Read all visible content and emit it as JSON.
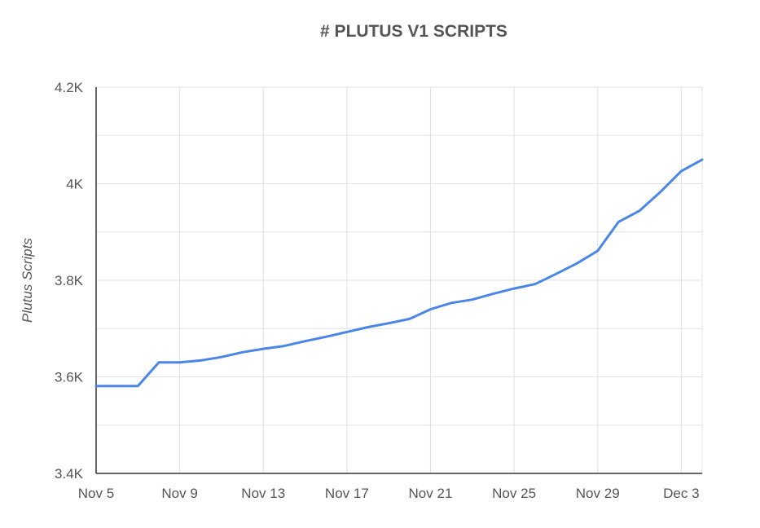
{
  "chart_data": {
    "type": "line",
    "title": "# PLUTUS V1 SCRIPTS",
    "xlabel": "",
    "ylabel": "Plutus Scripts",
    "xlim": [
      "2021-11-05",
      "2021-12-04"
    ],
    "ylim": [
      3400,
      4200
    ],
    "x_tick_labels": [
      "Nov 5",
      "Nov 9",
      "Nov 13",
      "Nov 17",
      "Nov 21",
      "Nov 25",
      "Nov 29",
      "Dec 3"
    ],
    "x_ticks": [
      "2021-11-05",
      "2021-11-09",
      "2021-11-13",
      "2021-11-17",
      "2021-11-21",
      "2021-11-25",
      "2021-11-29",
      "2021-12-03"
    ],
    "y_tick_labels": [
      "3.4K",
      "3.6K",
      "3.8K",
      "4K",
      "4.2K"
    ],
    "y_ticks": [
      3400,
      3600,
      3800,
      4000,
      4200
    ],
    "grid": true,
    "legend": "none",
    "series": [
      {
        "color": "#4a86e8",
        "x": [
          "2021-11-05",
          "2021-11-06",
          "2021-11-07",
          "2021-11-08",
          "2021-11-09",
          "2021-11-10",
          "2021-11-11",
          "2021-11-12",
          "2021-11-13",
          "2021-11-14",
          "2021-11-15",
          "2021-11-16",
          "2021-11-17",
          "2021-11-18",
          "2021-11-19",
          "2021-11-20",
          "2021-11-21",
          "2021-11-22",
          "2021-11-23",
          "2021-11-24",
          "2021-11-25",
          "2021-11-26",
          "2021-11-27",
          "2021-11-28",
          "2021-11-29",
          "2021-11-30",
          "2021-12-01",
          "2021-12-02",
          "2021-12-03",
          "2021-12-04"
        ],
        "values": [
          3581,
          3581,
          3581,
          3630,
          3630,
          3634,
          3641,
          3651,
          3658,
          3664,
          3674,
          3683,
          3693,
          3703,
          3711,
          3720,
          3740,
          3753,
          3760,
          3772,
          3783,
          3792,
          3813,
          3835,
          3861,
          3921,
          3944,
          3983,
          4026,
          4050
        ]
      }
    ]
  }
}
